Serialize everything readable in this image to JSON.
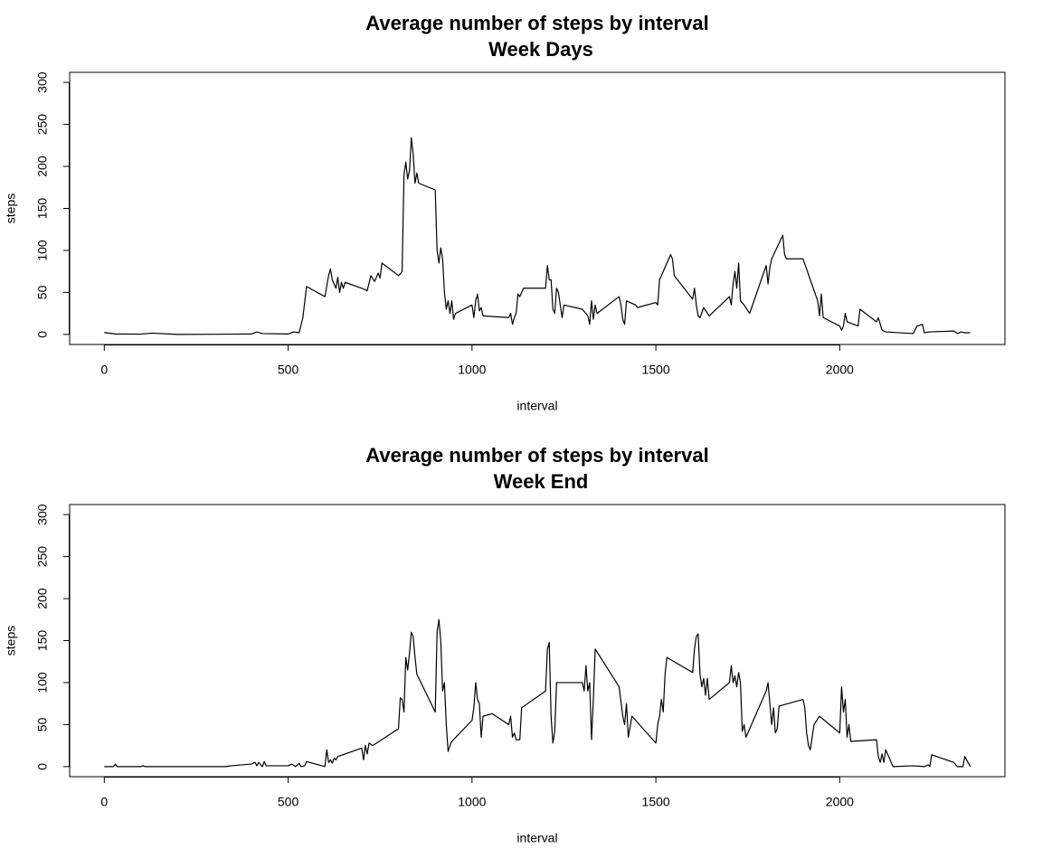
{
  "chart_data": [
    {
      "type": "line",
      "title": "Average number of steps by interval",
      "subtitle": "Week Days",
      "xlabel": "interval",
      "ylabel": "steps",
      "color": "#000000",
      "xlim": [
        -94.2,
        2449.2
      ],
      "ylim": [
        -12,
        312
      ],
      "xticks": [
        0,
        500,
        1000,
        1500,
        2000
      ],
      "yticks": [
        0,
        50,
        100,
        150,
        200,
        250,
        300
      ],
      "x": [
        0,
        30,
        100,
        130,
        200,
        300,
        400,
        415,
        430,
        500,
        515,
        530,
        540,
        550,
        600,
        610,
        615,
        620,
        630,
        635,
        640,
        645,
        650,
        655,
        700,
        715,
        725,
        735,
        745,
        750,
        755,
        800,
        805,
        810,
        815,
        820,
        825,
        830,
        835,
        840,
        845,
        850,
        855,
        900,
        905,
        910,
        915,
        920,
        925,
        930,
        935,
        940,
        945,
        950,
        955,
        1000,
        1005,
        1010,
        1015,
        1020,
        1025,
        1030,
        1100,
        1105,
        1110,
        1115,
        1120,
        1125,
        1130,
        1135,
        1140,
        1200,
        1205,
        1210,
        1215,
        1220,
        1225,
        1230,
        1235,
        1245,
        1250,
        1300,
        1315,
        1320,
        1325,
        1330,
        1335,
        1340,
        1400,
        1405,
        1410,
        1415,
        1420,
        1430,
        1445,
        1450,
        1500,
        1505,
        1510,
        1540,
        1545,
        1550,
        1600,
        1605,
        1610,
        1615,
        1620,
        1630,
        1645,
        1700,
        1705,
        1710,
        1715,
        1720,
        1725,
        1730,
        1740,
        1755,
        1800,
        1805,
        1810,
        1815,
        1845,
        1850,
        1855,
        1900,
        1940,
        1945,
        1950,
        1955,
        2000,
        2005,
        2010,
        2015,
        2020,
        2050,
        2055,
        2100,
        2105,
        2115,
        2125,
        2200,
        2210,
        2225,
        2230,
        2245,
        2310,
        2320,
        2330,
        2340,
        2355
      ],
      "values": [
        2.3,
        0.5,
        0.3,
        1.5,
        0,
        0.2,
        0.5,
        3,
        1,
        0.5,
        3,
        2,
        20,
        57,
        45,
        70,
        78,
        65,
        55,
        68,
        50,
        62,
        55,
        62,
        55,
        52,
        70,
        63,
        73,
        67,
        85,
        70,
        72,
        75,
        190,
        205,
        185,
        195,
        234,
        215,
        180,
        192,
        180,
        172,
        100,
        85,
        103,
        90,
        50,
        30,
        40,
        25,
        40,
        18,
        25,
        35,
        20,
        40,
        48,
        28,
        32,
        22,
        20,
        25,
        12,
        20,
        25,
        48,
        45,
        50,
        55,
        55,
        82,
        65,
        65,
        30,
        25,
        55,
        50,
        20,
        35,
        30,
        22,
        12,
        40,
        18,
        35,
        25,
        45,
        35,
        18,
        12,
        40,
        38,
        35,
        32,
        38,
        35,
        65,
        95,
        90,
        70,
        42,
        55,
        35,
        22,
        20,
        32,
        22,
        45,
        35,
        60,
        75,
        55,
        85,
        40,
        35,
        25,
        82,
        60,
        80,
        90,
        118,
        95,
        90,
        90,
        40,
        22,
        48,
        20,
        10,
        5,
        10,
        25,
        15,
        10,
        30,
        15,
        20,
        5,
        3,
        1,
        10,
        12,
        2,
        3,
        4,
        1,
        3,
        2,
        2
      ]
    },
    {
      "type": "line",
      "title": "Average number of steps by interval",
      "subtitle": "Week End",
      "xlabel": "interval",
      "ylabel": "steps",
      "color": "#000000",
      "xlim": [
        -94.2,
        2449.2
      ],
      "ylim": [
        -12,
        312
      ],
      "xticks": [
        0,
        500,
        1000,
        1500,
        2000
      ],
      "yticks": [
        0,
        50,
        100,
        150,
        200,
        250,
        300
      ],
      "x": [
        0,
        25,
        30,
        35,
        100,
        105,
        110,
        300,
        330,
        345,
        400,
        410,
        415,
        420,
        430,
        435,
        440,
        500,
        510,
        520,
        530,
        535,
        545,
        550,
        600,
        605,
        610,
        615,
        620,
        625,
        630,
        635,
        700,
        705,
        710,
        715,
        720,
        730,
        800,
        805,
        810,
        815,
        820,
        825,
        830,
        835,
        840,
        845,
        850,
        900,
        905,
        910,
        915,
        920,
        925,
        930,
        935,
        940,
        945,
        1000,
        1005,
        1010,
        1015,
        1020,
        1025,
        1030,
        1055,
        1100,
        1105,
        1110,
        1115,
        1120,
        1130,
        1135,
        1200,
        1205,
        1210,
        1215,
        1220,
        1225,
        1230,
        1300,
        1305,
        1310,
        1315,
        1320,
        1325,
        1330,
        1335,
        1400,
        1410,
        1415,
        1420,
        1425,
        1435,
        1500,
        1505,
        1510,
        1515,
        1520,
        1525,
        1530,
        1600,
        1605,
        1610,
        1615,
        1620,
        1625,
        1630,
        1635,
        1640,
        1645,
        1700,
        1705,
        1710,
        1715,
        1720,
        1725,
        1730,
        1735,
        1740,
        1745,
        1800,
        1805,
        1810,
        1815,
        1820,
        1825,
        1830,
        1835,
        1900,
        1905,
        1910,
        1915,
        1920,
        1930,
        1945,
        2000,
        2005,
        2010,
        2015,
        2020,
        2025,
        2030,
        2100,
        2105,
        2110,
        2115,
        2120,
        2125,
        2135,
        2145,
        2200,
        2230,
        2240,
        2245,
        2250,
        2310,
        2320,
        2335,
        2340,
        2355
      ],
      "values": [
        0,
        0,
        3,
        0,
        0,
        1,
        0,
        0,
        0,
        1,
        3,
        5,
        1,
        5,
        0,
        6,
        1,
        1,
        3,
        0,
        4,
        0,
        1,
        6,
        0,
        20,
        5,
        8,
        4,
        10,
        8,
        12,
        22,
        8,
        25,
        15,
        28,
        25,
        45,
        82,
        80,
        65,
        130,
        115,
        135,
        160,
        155,
        130,
        110,
        65,
        160,
        175,
        150,
        90,
        100,
        50,
        18,
        25,
        30,
        55,
        70,
        100,
        80,
        75,
        35,
        60,
        63,
        50,
        60,
        35,
        40,
        32,
        32,
        70,
        90,
        140,
        148,
        60,
        28,
        42,
        100,
        100,
        90,
        120,
        90,
        100,
        32,
        80,
        140,
        95,
        60,
        50,
        75,
        35,
        60,
        28,
        50,
        60,
        80,
        65,
        110,
        130,
        112,
        140,
        155,
        158,
        110,
        95,
        105,
        85,
        105,
        80,
        100,
        120,
        100,
        108,
        95,
        112,
        100,
        42,
        50,
        35,
        90,
        100,
        75,
        50,
        70,
        40,
        45,
        72,
        80,
        70,
        40,
        25,
        20,
        50,
        60,
        40,
        95,
        65,
        80,
        35,
        50,
        30,
        32,
        12,
        5,
        15,
        5,
        20,
        10,
        0,
        1,
        0,
        2,
        0,
        14,
        5,
        0,
        0,
        12,
        0
      ]
    }
  ]
}
